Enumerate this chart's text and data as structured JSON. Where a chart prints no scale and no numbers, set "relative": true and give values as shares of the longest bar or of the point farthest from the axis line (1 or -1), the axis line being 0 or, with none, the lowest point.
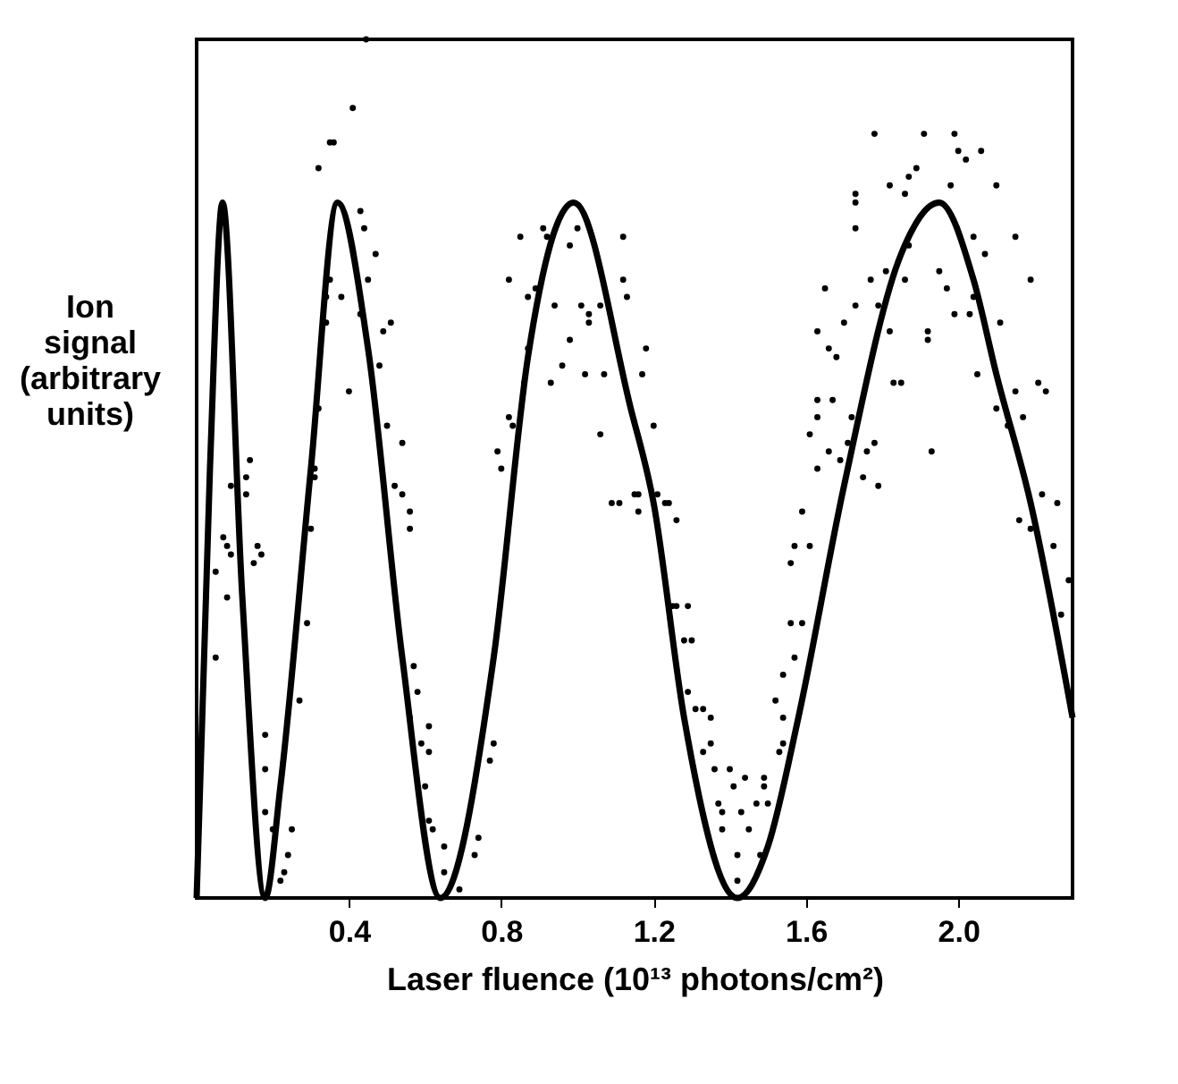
{
  "chart_data": {
    "type": "line",
    "relative": true,
    "xlabel": "Laser fluence (10¹³ photons/cm²)",
    "ylabel": "Ion signal (arbitrary units)",
    "xlim": [
      0,
      2.3
    ],
    "xticks": [
      0.4,
      0.8,
      1.2,
      1.6,
      {
        "value": 2.0,
        "label": "2.0"
      }
    ],
    "grid": false,
    "series": [
      {
        "type": "scatter",
        "color": "#000000",
        "marker": "circle",
        "x": [
          0.41,
          0.32,
          0.35,
          0.36,
          0.43,
          0.44,
          0.47,
          0.45,
          0.35,
          0.34,
          0.38,
          0.34,
          0.43,
          0.49,
          0.51,
          0.48,
          0.4,
          0.32,
          0.5,
          0.54,
          0.31,
          0.31,
          0.52,
          0.54,
          0.56,
          0.56,
          0.3,
          0.29,
          0.27,
          0.14,
          0.13,
          0.13,
          0.09,
          0.16,
          0.17,
          0.15,
          0.07,
          0.08,
          0.09,
          0.05,
          0.08,
          0.05,
          0.18,
          0.18,
          0.18,
          0.2,
          0.25,
          0.24,
          0.23,
          0.22,
          0.57,
          0.58,
          0.56,
          0.61,
          0.59,
          0.61,
          0.6,
          0.61,
          0.62,
          0.65,
          0.65,
          0.69,
          0.74,
          0.73,
          0.78,
          0.77,
          0.85,
          0.91,
          0.92,
          0.82,
          0.87,
          0.89,
          0.94,
          1.0,
          0.98,
          1.01,
          1.03,
          1.06,
          1.03,
          0.98,
          0.87,
          0.86,
          0.93,
          0.96,
          1.02,
          1.07,
          1.12,
          1.12,
          1.13,
          0.82,
          0.83,
          0.79,
          0.8,
          1.06,
          1.09,
          1.11,
          1.16,
          1.16,
          0.445,
          1.18,
          1.17,
          1.2,
          1.15,
          1.21,
          1.23,
          1.24,
          1.26,
          1.25,
          1.26,
          1.29,
          1.28,
          1.3,
          1.29,
          1.31,
          1.33,
          1.35,
          1.35,
          1.33,
          1.36,
          1.4,
          1.44,
          1.41,
          1.38,
          1.37,
          1.43,
          1.47,
          1.49,
          1.5,
          1.49,
          1.38,
          1.45,
          1.48,
          1.42,
          1.42,
          1.52,
          1.53,
          1.54,
          1.54,
          1.54,
          1.57,
          1.56,
          1.59,
          1.56,
          1.57,
          1.61,
          1.59,
          1.63,
          1.61,
          1.66,
          1.67,
          1.63,
          1.63,
          1.69,
          1.71,
          1.72,
          1.75,
          1.76,
          1.79,
          1.78,
          1.83,
          1.85,
          1.66,
          1.68,
          1.63,
          1.65,
          1.7,
          1.73,
          1.77,
          1.79,
          1.81,
          1.82,
          1.73,
          1.73,
          1.73,
          1.78,
          1.82,
          1.86,
          1.87,
          1.89,
          1.87,
          1.86,
          1.91,
          1.92,
          1.92,
          1.95,
          1.97,
          1.98,
          1.99,
          2.03,
          1.99,
          2.0,
          2.02,
          2.06,
          2.1,
          2.04,
          2.07,
          2.04,
          2.05,
          2.1,
          2.11,
          2.15,
          2.19,
          2.13,
          2.15,
          2.17,
          2.21,
          2.23,
          2.22,
          2.26,
          2.16,
          2.19,
          2.25,
          2.29,
          2.27,
          1.93
        ],
        "values": [
          0.92,
          0.85,
          0.88,
          0.88,
          0.8,
          0.78,
          0.75,
          0.72,
          0.72,
          0.7,
          0.7,
          0.67,
          0.68,
          0.66,
          0.67,
          0.62,
          0.59,
          0.57,
          0.55,
          0.53,
          0.5,
          0.49,
          0.48,
          0.47,
          0.45,
          0.43,
          0.43,
          0.32,
          0.23,
          0.51,
          0.49,
          0.47,
          0.48,
          0.41,
          0.4,
          0.39,
          0.42,
          0.41,
          0.4,
          0.38,
          0.35,
          0.28,
          0.19,
          0.15,
          0.1,
          0.08,
          0.08,
          0.05,
          0.03,
          0.02,
          0.27,
          0.24,
          0.21,
          0.2,
          0.18,
          0.17,
          0.13,
          0.09,
          0.08,
          0.06,
          0.03,
          0.01,
          0.07,
          0.05,
          0.18,
          0.16,
          0.77,
          0.78,
          0.77,
          0.72,
          0.7,
          0.71,
          0.69,
          0.78,
          0.76,
          0.69,
          0.68,
          0.69,
          0.67,
          0.65,
          0.64,
          0.6,
          0.6,
          0.62,
          0.61,
          0.61,
          0.77,
          0.72,
          0.7,
          0.56,
          0.55,
          0.52,
          0.5,
          0.54,
          0.46,
          0.46,
          0.47,
          0.45,
          1.0,
          0.64,
          0.61,
          0.55,
          0.47,
          0.47,
          0.46,
          0.46,
          0.44,
          0.34,
          0.34,
          0.34,
          0.3,
          0.3,
          0.24,
          0.22,
          0.22,
          0.21,
          0.18,
          0.17,
          0.15,
          0.15,
          0.14,
          0.13,
          0.1,
          0.11,
          0.1,
          0.11,
          0.13,
          0.11,
          0.14,
          0.08,
          0.08,
          0.05,
          0.05,
          0.02,
          0.23,
          0.17,
          0.18,
          0.21,
          0.26,
          0.28,
          0.32,
          0.32,
          0.39,
          0.41,
          0.41,
          0.45,
          0.5,
          0.54,
          0.52,
          0.58,
          0.56,
          0.58,
          0.51,
          0.53,
          0.56,
          0.49,
          0.52,
          0.48,
          0.53,
          0.6,
          0.6,
          0.64,
          0.63,
          0.66,
          0.71,
          0.67,
          0.69,
          0.72,
          0.69,
          0.73,
          0.66,
          0.82,
          0.81,
          0.78,
          0.89,
          0.83,
          0.82,
          0.84,
          0.85,
          0.76,
          0.72,
          0.89,
          0.65,
          0.66,
          0.73,
          0.71,
          0.83,
          0.68,
          0.68,
          0.89,
          0.87,
          0.86,
          0.87,
          0.83,
          0.77,
          0.75,
          0.7,
          0.61,
          0.57,
          0.67,
          0.77,
          0.72,
          0.55,
          0.59,
          0.56,
          0.6,
          0.59,
          0.47,
          0.46,
          0.44,
          0.43,
          0.41,
          0.37,
          0.33,
          0.52
        ]
      },
      {
        "color": "#000000",
        "line_style": "solid",
        "x": [
          0,
          0.035,
          0.068,
          0.12,
          0.18,
          0.22,
          0.3,
          0.37,
          0.45,
          0.54,
          0.64,
          0.78,
          0.87,
          0.99,
          1.14,
          1.2,
          1.28,
          1.42,
          1.5,
          1.58,
          1.7,
          1.85,
          1.95,
          2.04,
          2.1,
          2.19,
          2.3
        ],
        "values": [
          0,
          0.5,
          0.81,
          0.35,
          0,
          0.13,
          0.5,
          0.81,
          0.64,
          0.28,
          0,
          0.28,
          0.63,
          0.81,
          0.57,
          0.46,
          0.21,
          0,
          0.06,
          0.21,
          0.48,
          0.75,
          0.81,
          0.72,
          0.61,
          0.46,
          0.21
        ]
      }
    ]
  }
}
